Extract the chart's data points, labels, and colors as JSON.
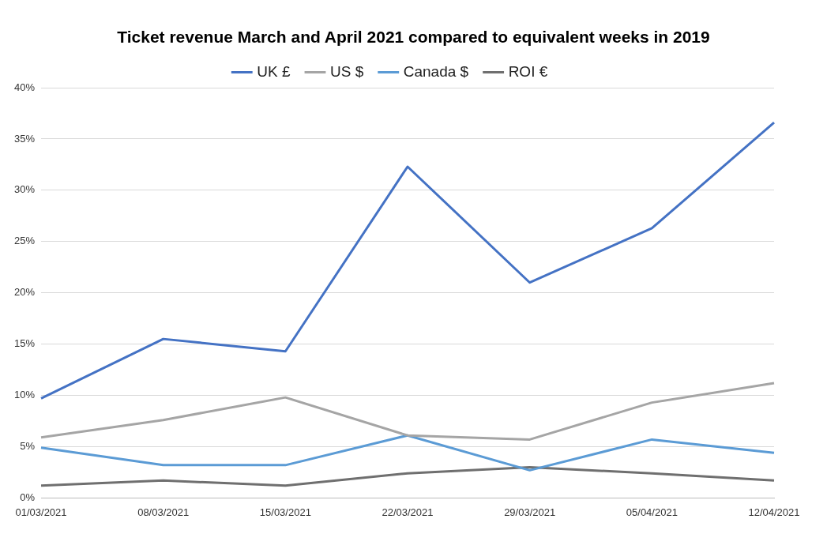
{
  "chart_data": {
    "type": "line",
    "title": "Ticket revenue March and April 2021 compared to equivalent weeks in 2019",
    "categories": [
      "01/03/2021",
      "08/03/2021",
      "15/03/2021",
      "22/03/2021",
      "29/03/2021",
      "05/04/2021",
      "12/04/2021"
    ],
    "series": [
      {
        "name": "UK £",
        "color": "#4472c4",
        "values": [
          9.7,
          15.5,
          14.3,
          32.3,
          21.0,
          26.3,
          36.6
        ]
      },
      {
        "name": "US $",
        "color": "#a5a5a5",
        "values": [
          5.9,
          7.6,
          9.8,
          6.1,
          5.7,
          9.3,
          11.2
        ]
      },
      {
        "name": "Canada $",
        "color": "#5b9bd5",
        "values": [
          4.9,
          3.2,
          3.2,
          6.1,
          2.7,
          5.7,
          4.4
        ]
      },
      {
        "name": "ROI €",
        "color": "#6f6f6f",
        "values": [
          1.2,
          1.7,
          1.2,
          2.4,
          3.0,
          2.4,
          1.7
        ]
      }
    ],
    "ylim": [
      0,
      40
    ],
    "yticks": [
      {
        "value": 0,
        "label": "0%"
      },
      {
        "value": 5,
        "label": "5%"
      },
      {
        "value": 10,
        "label": "10%"
      },
      {
        "value": 15,
        "label": "15%"
      },
      {
        "value": 20,
        "label": "20%"
      },
      {
        "value": 25,
        "label": "25%"
      },
      {
        "value": 30,
        "label": "30%"
      },
      {
        "value": 35,
        "label": "35%"
      },
      {
        "value": 40,
        "label": "40%"
      }
    ],
    "grid": "y",
    "legend": "top",
    "marker": "none",
    "line_style": "solid"
  }
}
